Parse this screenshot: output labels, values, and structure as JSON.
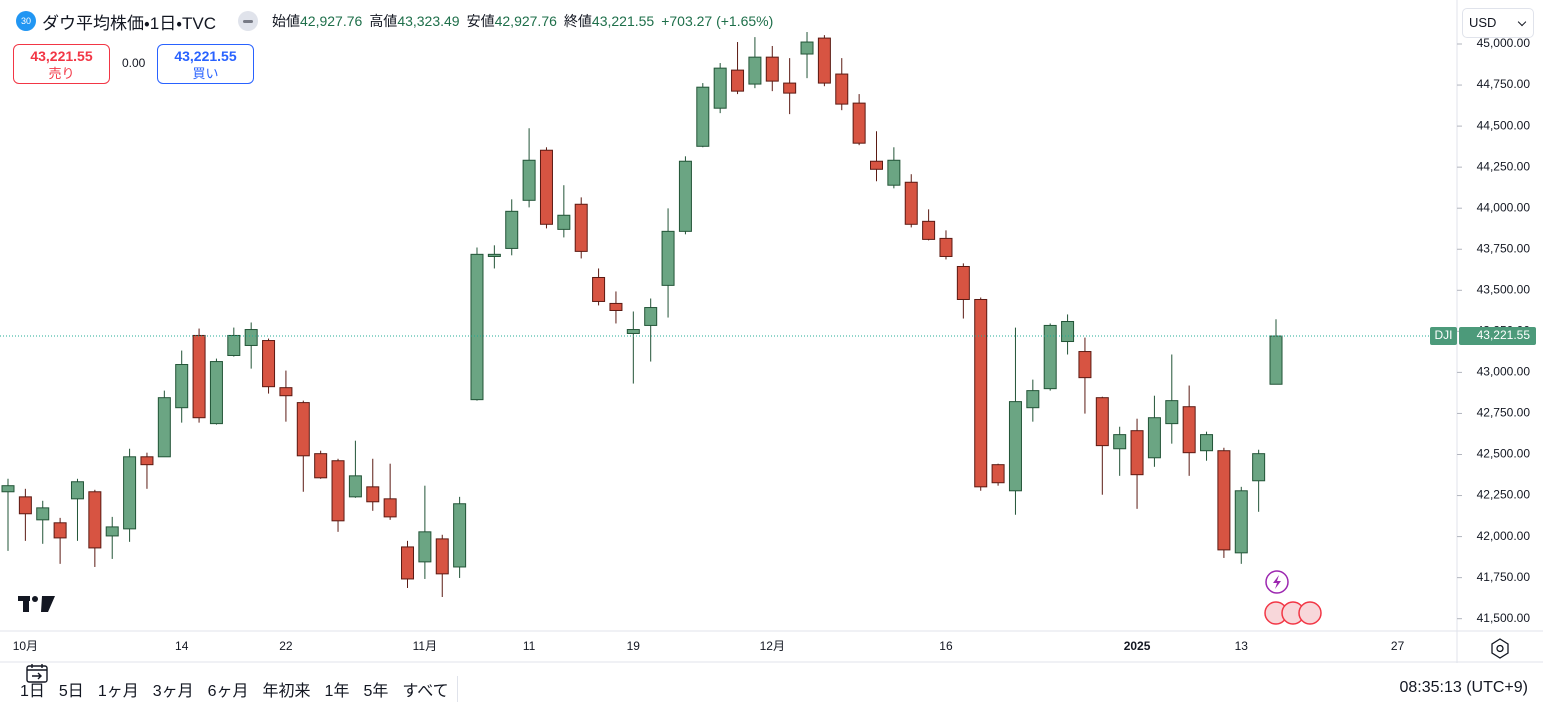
{
  "chart_data": {
    "type": "candlestick",
    "header": {
      "badge": "30",
      "title": "ダウ平均株価・1日・TVC",
      "ohlc": [
        {
          "label": "始値",
          "value": "42,927.76"
        },
        {
          "label": "高値",
          "value": "43,323.49"
        },
        {
          "label": "安値",
          "value": "42,927.76"
        },
        {
          "label": "終値",
          "value": "43,221.55"
        }
      ],
      "change": "+703.27 (+1.65%)"
    },
    "trade": {
      "sell_price": "43,221.55",
      "sell_label": "売り",
      "spread": "0.00",
      "buy_price": "43,221.55",
      "buy_label": "買い"
    },
    "currency": "USD",
    "symbol_tag": "DJI",
    "last_price_label": "43,221.55",
    "up_color": "#6ba583",
    "down_color": "#d75442",
    "up_border": "#225437",
    "down_border": "#5b1a13",
    "grid": false,
    "categories": [
      null,
      "10月",
      null,
      null,
      null,
      null,
      null,
      null,
      null,
      null,
      "14",
      null,
      null,
      null,
      null,
      null,
      "22",
      null,
      null,
      null,
      null,
      null,
      null,
      null,
      "11月",
      null,
      null,
      null,
      null,
      null,
      "11",
      null,
      null,
      null,
      null,
      null,
      "19",
      null,
      null,
      null,
      null,
      null,
      null,
      null,
      "12月",
      null,
      null,
      null,
      null,
      null,
      null,
      null,
      null,
      null,
      "16",
      null,
      null,
      null,
      null,
      null,
      null,
      null,
      null,
      null,
      null,
      "2025",
      null,
      null,
      null,
      null,
      null,
      "13",
      null,
      null,
      null,
      null,
      null,
      null,
      null,
      null,
      "27",
      null,
      null,
      null
    ],
    "open": [
      42273,
      42242,
      42102,
      42084,
      42230,
      42273,
      42004,
      42047,
      42486,
      42486,
      42785,
      43225,
      42688,
      43103,
      43164,
      43194,
      42907,
      42816,
      42505,
      42462,
      42242,
      42303,
      42230,
      41937,
      41846,
      41986,
      41815,
      42834,
      43706,
      43755,
      44048,
      44353,
      43871,
      44024,
      43578,
      43420,
      43237,
      43286,
      43530,
      43859,
      44377,
      44609,
      44841,
      44756,
      44920,
      44762,
      44939,
      45036,
      44817,
      44640,
      44286,
      44140,
      44158,
      43920,
      43816,
      43645,
      43444,
      42438,
      42279,
      42785,
      42901,
      43188,
      43127,
      42846,
      42535,
      42645,
      42480,
      42688,
      42791,
      42523,
      42523,
      41901,
      42340,
      42927.76,
      null,
      null,
      null,
      null,
      null,
      null,
      null,
      null,
      null,
      null
    ],
    "high": [
      42352,
      42291,
      42218,
      42114,
      42352,
      42285,
      42120,
      42535,
      42511,
      42889,
      43133,
      43267,
      43084,
      43273,
      43304,
      43206,
      43011,
      42828,
      42523,
      42474,
      42584,
      42474,
      42444,
      41974,
      42310,
      42011,
      42242,
      43761,
      43774,
      44054,
      44487,
      44371,
      44140,
      44066,
      43633,
      43493,
      43371,
      43450,
      43999,
      44316,
      44762,
      44884,
      45012,
      45042,
      44988,
      44914,
      45073,
      45054,
      44914,
      44695,
      44469,
      44371,
      44207,
      43993,
      43865,
      43664,
      43456,
      42444,
      43273,
      42956,
      43298,
      43353,
      43212,
      42852,
      42669,
      42718,
      42858,
      43109,
      42920,
      42639,
      42541,
      42303,
      42529,
      43323.49,
      null,
      null,
      null,
      null,
      null,
      null,
      null,
      null,
      null,
      null
    ],
    "low": [
      41913,
      41974,
      41956,
      41834,
      41974,
      41815,
      41864,
      41968,
      42291,
      42486,
      42694,
      42694,
      42682,
      43096,
      43023,
      42871,
      42700,
      42273,
      42352,
      42029,
      42236,
      42157,
      42102,
      41687,
      41742,
      41632,
      41748,
      42828,
      43633,
      43713,
      44005,
      43877,
      43822,
      43694,
      43408,
      43298,
      42932,
      43066,
      43334,
      43841,
      44371,
      44579,
      44695,
      44731,
      44713,
      44573,
      44792,
      44743,
      44597,
      44384,
      44164,
      44121,
      43883,
      43804,
      43688,
      43328,
      42279,
      42310,
      42133,
      42700,
      42889,
      43109,
      42749,
      42255,
      42370,
      42169,
      42425,
      42566,
      42370,
      42462,
      41870,
      41834,
      42151,
      42927.76,
      null,
      null,
      null,
      null,
      null,
      null,
      null,
      null,
      null,
      null
    ],
    "close": [
      42310,
      42139,
      42175,
      41992,
      42334,
      41931,
      42059,
      42486,
      42438,
      42846,
      43048,
      42724,
      43066,
      43225,
      43261,
      42913,
      42858,
      42492,
      42358,
      42096,
      42370,
      42212,
      42120,
      41742,
      42029,
      41773,
      42200,
      43719,
      43719,
      43981,
      44292,
      43902,
      43957,
      43737,
      43432,
      43377,
      43261,
      43395,
      43859,
      44286,
      44737,
      44853,
      44713,
      44920,
      44774,
      44701,
      45012,
      44762,
      44634,
      44396,
      44237,
      44292,
      43902,
      43810,
      43706,
      43444,
      42303,
      42328,
      42822,
      42889,
      43286,
      43310,
      42968,
      42554,
      42621,
      42377,
      42724,
      42828,
      42511,
      42621,
      41919,
      42279,
      42505,
      43221.55,
      null,
      null,
      null,
      null,
      null,
      null,
      null,
      null,
      null,
      null
    ],
    "ylim": [
      41425,
      45268
    ],
    "yticks": [
      {
        "value": 41500,
        "label": "41,500.00"
      },
      {
        "value": 41750,
        "label": "41,750.00"
      },
      {
        "value": 42000,
        "label": "42,000.00"
      },
      {
        "value": 42250,
        "label": "42,250.00"
      },
      {
        "value": 42500,
        "label": "42,500.00"
      },
      {
        "value": 42750,
        "label": "42,750.00"
      },
      {
        "value": 43000,
        "label": "43,000.00"
      },
      {
        "value": 43250,
        "label": "43,250.00"
      },
      {
        "value": 43500,
        "label": "43,500.00"
      },
      {
        "value": 43750,
        "label": "43,750.00"
      },
      {
        "value": 44000,
        "label": "44,000.00"
      },
      {
        "value": 44250,
        "label": "44,250.00"
      },
      {
        "value": 44500,
        "label": "44,500.00"
      },
      {
        "value": 44750,
        "label": "44,750.00"
      },
      {
        "value": 45000,
        "label": "45,000.00"
      }
    ],
    "ranges": [
      "1日",
      "5日",
      "1ヶ月",
      "3ヶ月",
      "6ヶ月",
      "年初来",
      "1年",
      "5年",
      "すべて"
    ],
    "clock": "08:35:13 (UTC+9)"
  }
}
